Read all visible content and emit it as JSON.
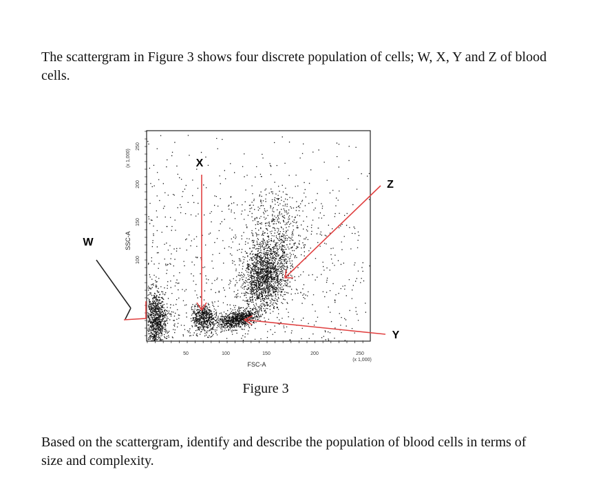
{
  "intro": {
    "text": "The scattergram in Figure 3 shows four discrete population of cells; W, X, Y and Z of blood cells."
  },
  "figure": {
    "labels": {
      "w": "W",
      "x": "X",
      "y": "Y",
      "z": "Z"
    },
    "x_axis": {
      "title": "FSC-A",
      "ticks": [
        "50",
        "100",
        "150",
        "200",
        "250"
      ],
      "unit": "(x 1,000)"
    },
    "y_axis": {
      "title": "SSC-A",
      "ticks": [
        "100",
        "150",
        "200",
        "250"
      ],
      "unit": "(x 1,000)"
    },
    "caption": "Figure 3"
  },
  "question": {
    "text": "Based on the scattergram, identify and describe the population of blood cells in terms of size and complexity."
  }
}
